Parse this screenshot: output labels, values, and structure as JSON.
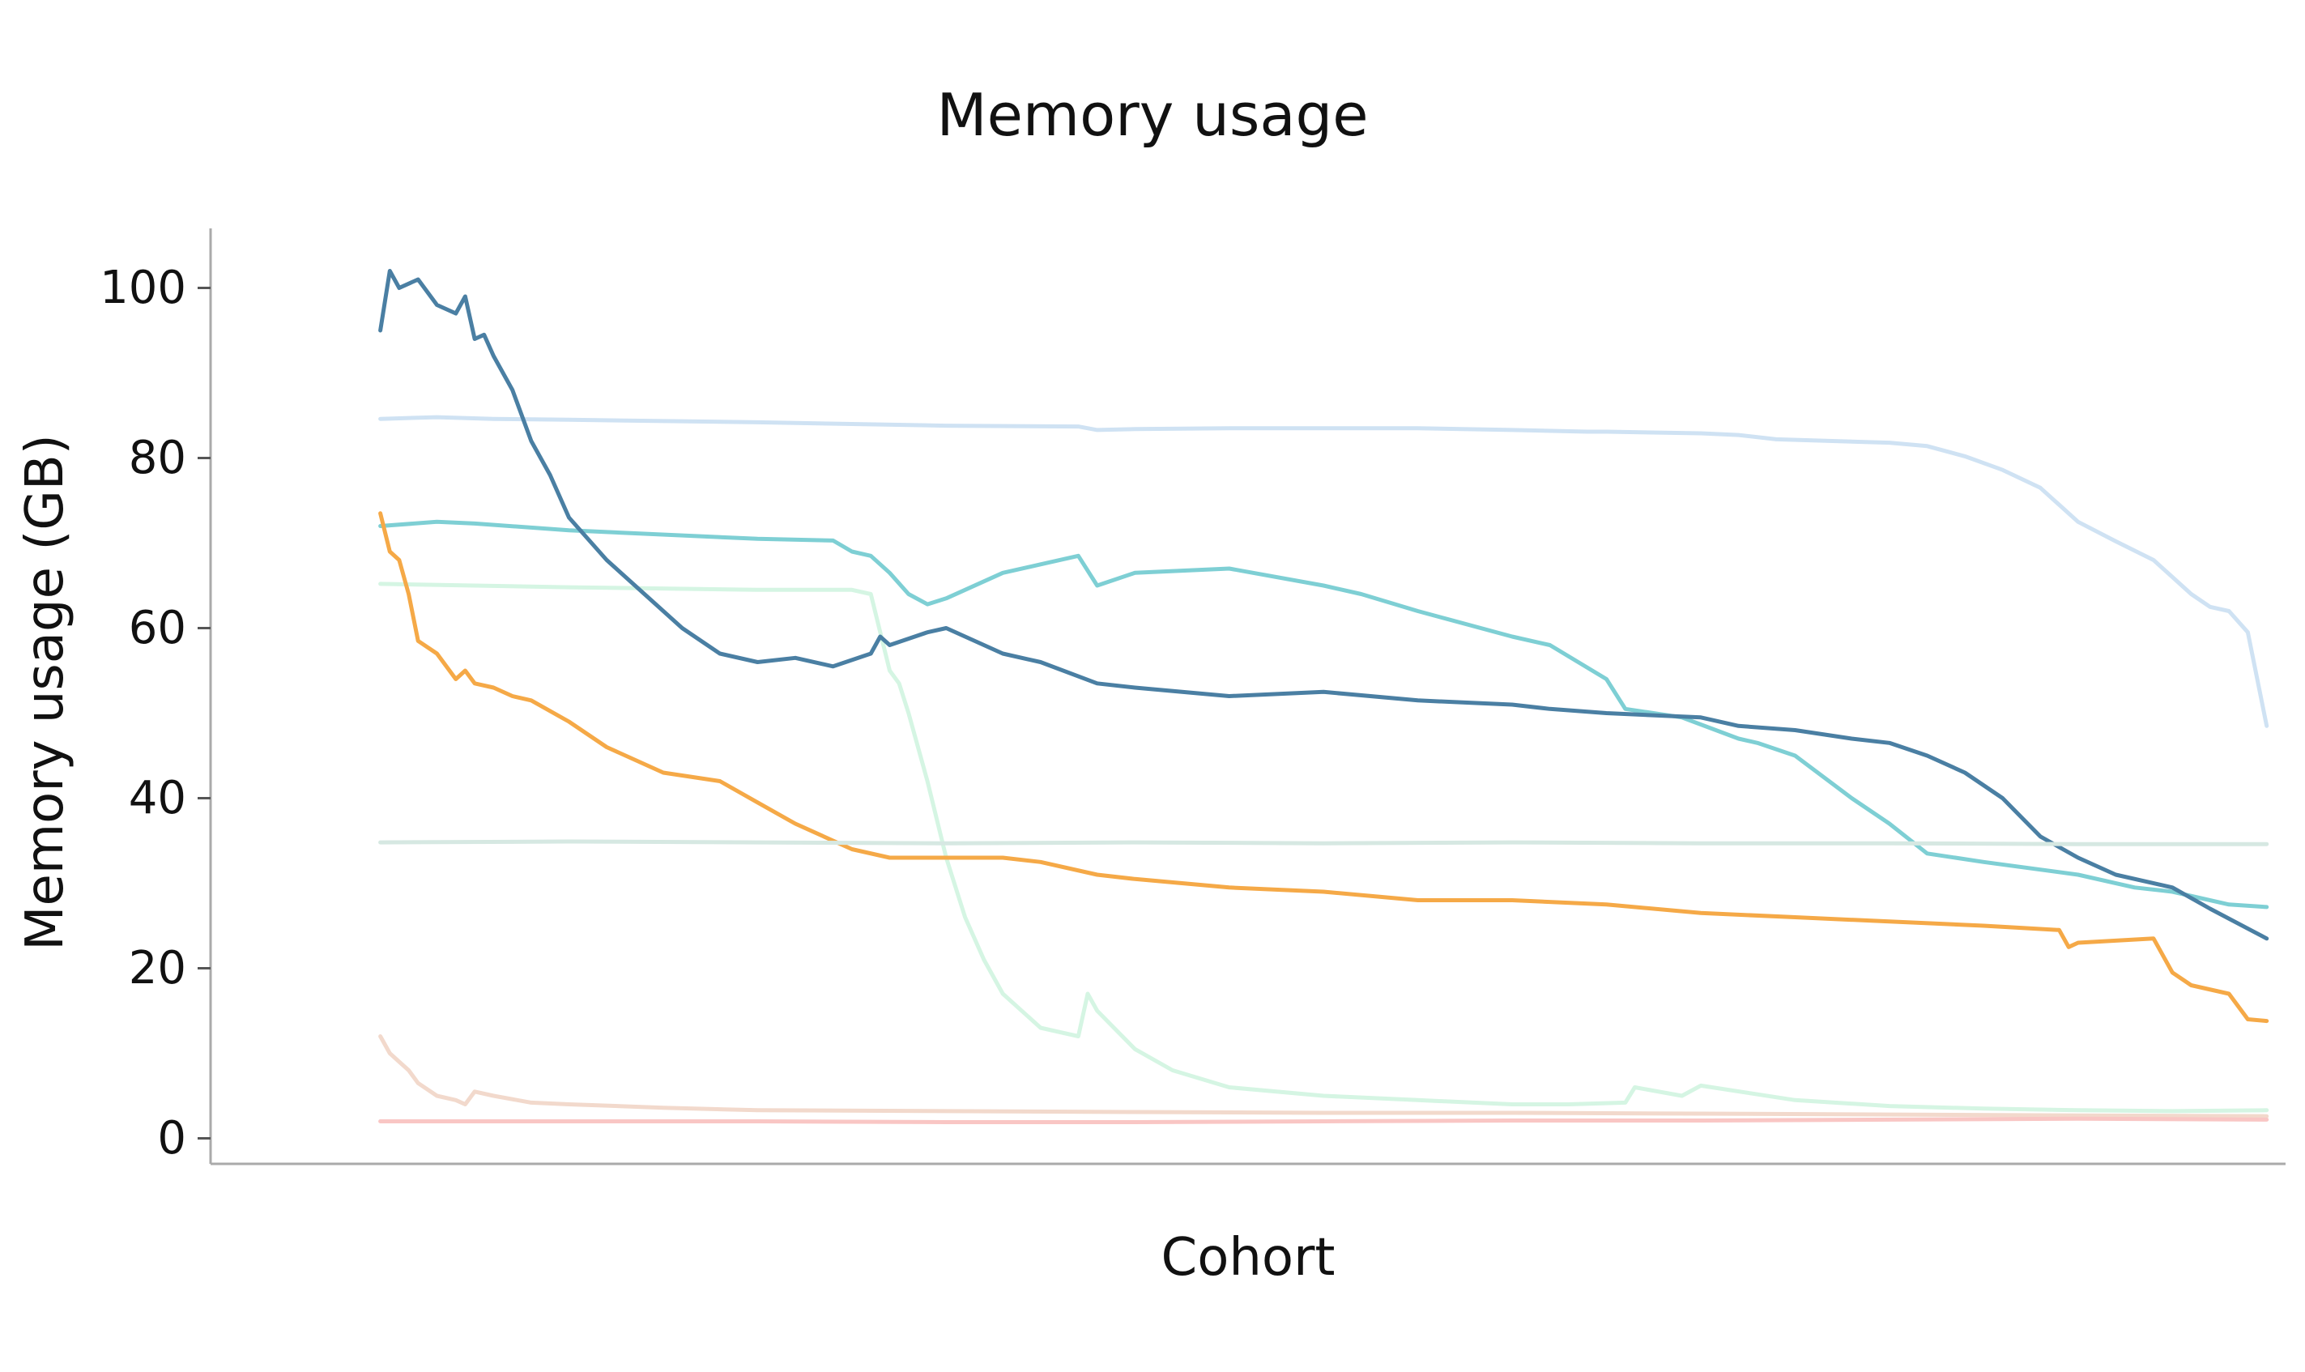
{
  "chart_data": {
    "type": "line",
    "title": "Memory usage",
    "xlabel": "Cohort",
    "ylabel": "Memory usage (GB)",
    "ylim": [
      -3,
      107
    ],
    "xlim": [
      -0.09,
      1.01
    ],
    "yticks": [
      0,
      20,
      40,
      60,
      80,
      100
    ],
    "show_xticks": false,
    "grid": false,
    "legend": "none",
    "series": [
      {
        "color": "#cfe2f3",
        "x": [
          0,
          0.03,
          0.06,
          0.1,
          0.2,
          0.3,
          0.37,
          0.38,
          0.4,
          0.45,
          0.55,
          0.6,
          0.64,
          0.65,
          0.7,
          0.72,
          0.74,
          0.8,
          0.82,
          0.84,
          0.86,
          0.88,
          0.9,
          0.92,
          0.94,
          0.95,
          0.96,
          0.97,
          0.98,
          0.99,
          1.0
        ],
        "y": [
          84.6,
          84.8,
          84.6,
          84.5,
          84.2,
          83.8,
          83.7,
          83.3,
          83.4,
          83.5,
          83.5,
          83.3,
          83.1,
          83.1,
          82.9,
          82.7,
          82.2,
          81.8,
          81.4,
          80.2,
          78.6,
          76.5,
          72.5,
          70.2,
          68,
          66,
          64,
          62.5,
          62.0,
          59.5,
          48.5
        ]
      },
      {
        "color": "#d5f5e3",
        "x": [
          0,
          0.05,
          0.1,
          0.2,
          0.25,
          0.26,
          0.27,
          0.275,
          0.28,
          0.29,
          0.3,
          0.31,
          0.32,
          0.33,
          0.35,
          0.37,
          0.375,
          0.38,
          0.4,
          0.42,
          0.45,
          0.5,
          0.55,
          0.6,
          0.63,
          0.66,
          0.665,
          0.69,
          0.7,
          0.75,
          0.8,
          0.85,
          0.9,
          0.95,
          1.0
        ],
        "y": [
          65.2,
          65.0,
          64.8,
          64.5,
          64.5,
          64.0,
          55,
          53.5,
          50,
          42,
          33,
          26,
          21,
          17,
          13,
          12,
          17,
          15,
          10.5,
          8,
          6,
          5,
          4.5,
          4,
          4,
          4.2,
          6,
          5,
          6.2,
          4.5,
          3.8,
          3.5,
          3.3,
          3.2,
          3.3
        ]
      },
      {
        "color": "#7ecfd4",
        "x": [
          0,
          0.03,
          0.05,
          0.1,
          0.2,
          0.24,
          0.25,
          0.26,
          0.27,
          0.28,
          0.29,
          0.3,
          0.33,
          0.35,
          0.37,
          0.38,
          0.4,
          0.45,
          0.5,
          0.52,
          0.55,
          0.6,
          0.62,
          0.65,
          0.66,
          0.69,
          0.72,
          0.73,
          0.75,
          0.78,
          0.8,
          0.82,
          0.85,
          0.9,
          0.93,
          0.95,
          0.98,
          1.0
        ],
        "y": [
          72,
          72.5,
          72.3,
          71.5,
          70.5,
          70.3,
          69,
          68.5,
          66.5,
          64,
          62.8,
          63.5,
          66.5,
          67.5,
          68.5,
          65,
          66.5,
          67,
          65,
          64,
          62,
          59,
          58,
          54,
          50.5,
          49.5,
          47,
          46.5,
          45,
          40,
          37,
          33.5,
          32.5,
          31,
          29.5,
          29,
          27.5,
          27.2
        ]
      },
      {
        "color": "#4a7fa3",
        "x": [
          0,
          0.005,
          0.01,
          0.02,
          0.03,
          0.04,
          0.045,
          0.05,
          0.055,
          0.06,
          0.07,
          0.08,
          0.09,
          0.1,
          0.12,
          0.14,
          0.16,
          0.18,
          0.2,
          0.22,
          0.24,
          0.26,
          0.265,
          0.27,
          0.29,
          0.3,
          0.31,
          0.33,
          0.35,
          0.38,
          0.4,
          0.45,
          0.5,
          0.55,
          0.6,
          0.62,
          0.65,
          0.7,
          0.72,
          0.75,
          0.78,
          0.8,
          0.82,
          0.84,
          0.86,
          0.88,
          0.9,
          0.92,
          0.95,
          0.97,
          1.0
        ],
        "y": [
          95,
          102,
          100,
          101,
          98,
          97,
          99,
          94,
          94.5,
          92,
          88,
          82,
          78,
          73,
          68,
          64,
          60,
          57,
          56,
          56.5,
          55.5,
          57,
          59,
          58,
          59.5,
          60,
          59,
          57,
          56,
          53.5,
          53,
          52,
          52.5,
          51.5,
          51,
          50.5,
          50,
          49.5,
          48.5,
          48,
          47,
          46.5,
          45,
          43,
          40,
          35.5,
          33,
          31,
          29.5,
          27,
          23.5
        ]
      },
      {
        "color": "#f5a947",
        "x": [
          0,
          0.005,
          0.01,
          0.015,
          0.02,
          0.03,
          0.04,
          0.045,
          0.05,
          0.06,
          0.07,
          0.08,
          0.1,
          0.12,
          0.15,
          0.18,
          0.2,
          0.22,
          0.25,
          0.27,
          0.28,
          0.3,
          0.33,
          0.35,
          0.38,
          0.4,
          0.45,
          0.5,
          0.55,
          0.6,
          0.65,
          0.7,
          0.75,
          0.8,
          0.85,
          0.89,
          0.895,
          0.9,
          0.94,
          0.95,
          0.96,
          0.98,
          0.99,
          1.0
        ],
        "y": [
          73.5,
          69,
          68,
          64,
          58.5,
          57,
          54,
          55,
          53.5,
          53,
          52,
          51.5,
          49,
          46,
          43,
          42,
          39.5,
          37,
          34,
          33,
          33,
          33,
          33,
          32.5,
          31,
          30.5,
          29.5,
          29,
          28,
          28,
          27.5,
          26.5,
          26,
          25.5,
          25,
          24.5,
          22.5,
          23,
          23.5,
          19.5,
          18,
          17,
          14,
          13.8
        ]
      },
      {
        "color": "#d6e8e2",
        "x": [
          0,
          0.1,
          0.2,
          0.3,
          0.4,
          0.5,
          0.6,
          0.7,
          0.8,
          0.9,
          1.0
        ],
        "y": [
          34.8,
          34.9,
          34.8,
          34.7,
          34.8,
          34.7,
          34.8,
          34.7,
          34.7,
          34.6,
          34.6
        ]
      },
      {
        "color": "#f2d9cc",
        "x": [
          0,
          0.005,
          0.01,
          0.015,
          0.02,
          0.03,
          0.04,
          0.045,
          0.05,
          0.06,
          0.08,
          0.1,
          0.15,
          0.2,
          0.3,
          0.4,
          0.5,
          0.6,
          0.7,
          0.8,
          0.9,
          1.0
        ],
        "y": [
          12,
          10,
          9,
          8,
          6.5,
          5,
          4.5,
          4,
          5.5,
          5,
          4.2,
          4,
          3.6,
          3.3,
          3.2,
          3.1,
          3.0,
          3.0,
          2.9,
          2.8,
          2.7,
          2.6
        ]
      },
      {
        "color": "#f9c6c4",
        "x": [
          0,
          0.1,
          0.2,
          0.3,
          0.4,
          0.5,
          0.6,
          0.7,
          0.8,
          0.9,
          1.0
        ],
        "y": [
          2.0,
          2.0,
          2.0,
          1.9,
          1.9,
          2.0,
          2.1,
          2.1,
          2.2,
          2.3,
          2.2
        ]
      }
    ]
  }
}
